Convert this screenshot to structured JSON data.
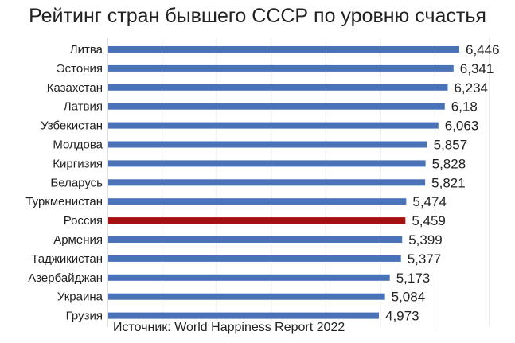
{
  "chart_data": {
    "type": "bar",
    "orientation": "horizontal",
    "title": "Рейтинг стран бывшего СССР по уровню счастья",
    "categories": [
      "Литва",
      "Эстония",
      "Казахстан",
      "Латвия",
      "Узбекистан",
      "Молдова",
      "Киргизия",
      "Беларусь",
      "Туркменистан",
      "Россия",
      "Армения",
      "Таджикистан",
      "Азербайджан",
      "Украина",
      "Грузия"
    ],
    "values": [
      6.446,
      6.341,
      6.234,
      6.18,
      6.063,
      5.857,
      5.828,
      5.821,
      5.474,
      5.459,
      5.399,
      5.377,
      5.173,
      5.084,
      4.973
    ],
    "data_labels": [
      "6,446",
      "6,341",
      "6,234",
      "6,18",
      "6,063",
      "5,857",
      "5,828",
      "5,821",
      "5,474",
      "5,459",
      "5,399",
      "5,377",
      "5,173",
      "5,084",
      "4,973"
    ],
    "highlight_category": "Россия",
    "bar_color": "#4a72b8",
    "highlight_color": "#a50f0f",
    "grid": true,
    "xlim": [
      0,
      7
    ],
    "xlabel": "",
    "ylabel": "",
    "source": "Источник: World Happiness Report 2022"
  }
}
